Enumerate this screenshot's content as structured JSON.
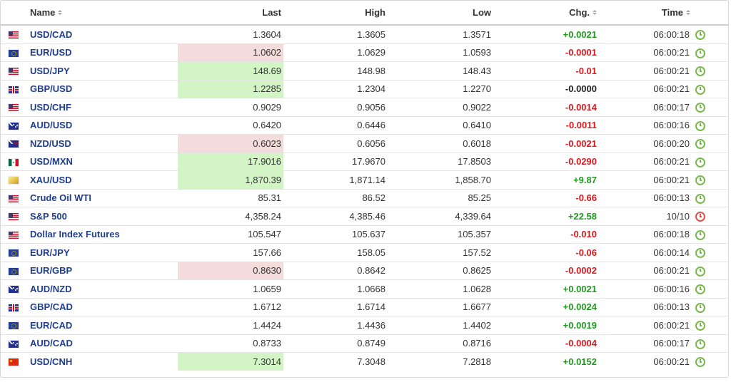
{
  "headers": {
    "name": "Name",
    "last": "Last",
    "high": "High",
    "low": "Low",
    "chg": "Chg.",
    "time": "Time"
  },
  "rows": [
    {
      "flag": "us",
      "name": "USD/CAD",
      "last": "1.3604",
      "high": "1.3605",
      "low": "1.3571",
      "chg": "+0.0021",
      "dir": "pos",
      "time": "06:00:18",
      "hl": "none",
      "status": "open"
    },
    {
      "flag": "eu",
      "name": "EUR/USD",
      "last": "1.0602",
      "high": "1.0629",
      "low": "1.0593",
      "chg": "-0.0001",
      "dir": "neg",
      "time": "06:00:21",
      "hl": "down",
      "status": "open"
    },
    {
      "flag": "us",
      "name": "USD/JPY",
      "last": "148.69",
      "high": "148.98",
      "low": "148.43",
      "chg": "-0.01",
      "dir": "neg",
      "time": "06:00:21",
      "hl": "up",
      "status": "open"
    },
    {
      "flag": "gb",
      "name": "GBP/USD",
      "last": "1.2285",
      "high": "1.2304",
      "low": "1.2270",
      "chg": "-0.0000",
      "dir": "flat",
      "time": "06:00:21",
      "hl": "up",
      "status": "open"
    },
    {
      "flag": "us",
      "name": "USD/CHF",
      "last": "0.9029",
      "high": "0.9056",
      "low": "0.9022",
      "chg": "-0.0014",
      "dir": "neg",
      "time": "06:00:17",
      "hl": "none",
      "status": "open"
    },
    {
      "flag": "au",
      "name": "AUD/USD",
      "last": "0.6420",
      "high": "0.6446",
      "low": "0.6410",
      "chg": "-0.0011",
      "dir": "neg",
      "time": "06:00:16",
      "hl": "none",
      "status": "open"
    },
    {
      "flag": "nz",
      "name": "NZD/USD",
      "last": "0.6023",
      "high": "0.6056",
      "low": "0.6018",
      "chg": "-0.0021",
      "dir": "neg",
      "time": "06:00:20",
      "hl": "down",
      "status": "open"
    },
    {
      "flag": "mx",
      "name": "USD/MXN",
      "last": "17.9016",
      "high": "17.9670",
      "low": "17.8503",
      "chg": "-0.0290",
      "dir": "neg",
      "time": "06:00:21",
      "hl": "up",
      "status": "open"
    },
    {
      "flag": "gold",
      "name": "XAU/USD",
      "last": "1,870.39",
      "high": "1,871.14",
      "low": "1,858.70",
      "chg": "+9.87",
      "dir": "pos",
      "time": "06:00:21",
      "hl": "up",
      "status": "open"
    },
    {
      "flag": "us",
      "name": "Crude Oil WTI",
      "last": "85.31",
      "high": "86.52",
      "low": "85.25",
      "chg": "-0.66",
      "dir": "neg",
      "time": "06:00:13",
      "hl": "none",
      "status": "open"
    },
    {
      "flag": "us",
      "name": "S&P 500",
      "last": "4,358.24",
      "high": "4,385.46",
      "low": "4,339.64",
      "chg": "+22.58",
      "dir": "pos",
      "time": "10/10",
      "hl": "none",
      "status": "closed"
    },
    {
      "flag": "us",
      "name": "Dollar Index Futures",
      "last": "105.547",
      "high": "105.637",
      "low": "105.357",
      "chg": "-0.010",
      "dir": "neg",
      "time": "06:00:18",
      "hl": "none",
      "status": "open"
    },
    {
      "flag": "eu",
      "name": "EUR/JPY",
      "last": "157.66",
      "high": "158.05",
      "low": "157.52",
      "chg": "-0.06",
      "dir": "neg",
      "time": "06:00:14",
      "hl": "none",
      "status": "open"
    },
    {
      "flag": "eu",
      "name": "EUR/GBP",
      "last": "0.8630",
      "high": "0.8642",
      "low": "0.8625",
      "chg": "-0.0002",
      "dir": "neg",
      "time": "06:00:21",
      "hl": "down",
      "status": "open"
    },
    {
      "flag": "au",
      "name": "AUD/NZD",
      "last": "1.0659",
      "high": "1.0668",
      "low": "1.0628",
      "chg": "+0.0021",
      "dir": "pos",
      "time": "06:00:16",
      "hl": "none",
      "status": "open"
    },
    {
      "flag": "gb",
      "name": "GBP/CAD",
      "last": "1.6712",
      "high": "1.6714",
      "low": "1.6677",
      "chg": "+0.0024",
      "dir": "pos",
      "time": "06:00:13",
      "hl": "none",
      "status": "open"
    },
    {
      "flag": "eu",
      "name": "EUR/CAD",
      "last": "1.4424",
      "high": "1.4436",
      "low": "1.4402",
      "chg": "+0.0019",
      "dir": "pos",
      "time": "06:00:21",
      "hl": "none",
      "status": "open"
    },
    {
      "flag": "au",
      "name": "AUD/CAD",
      "last": "0.8733",
      "high": "0.8749",
      "low": "0.8716",
      "chg": "-0.0004",
      "dir": "neg",
      "time": "06:00:17",
      "hl": "none",
      "status": "open"
    },
    {
      "flag": "cn",
      "name": "USD/CNH",
      "last": "7.3014",
      "high": "7.3048",
      "low": "7.2818",
      "chg": "+0.0152",
      "dir": "pos",
      "time": "06:00:21",
      "hl": "up",
      "status": "open"
    }
  ],
  "colors": {
    "link": "#1f3e8f",
    "positive": "#1e9a1e",
    "negative": "#d9181d",
    "highlight_up": "#d3f5c6",
    "highlight_down": "#f5dcdc",
    "clock_open": "#7ab84e",
    "clock_closed": "#d9534f"
  },
  "icons": {
    "sort": "sort-arrows-icon",
    "status_open": "clock-icon",
    "status_closed": "clock-closed-icon"
  }
}
